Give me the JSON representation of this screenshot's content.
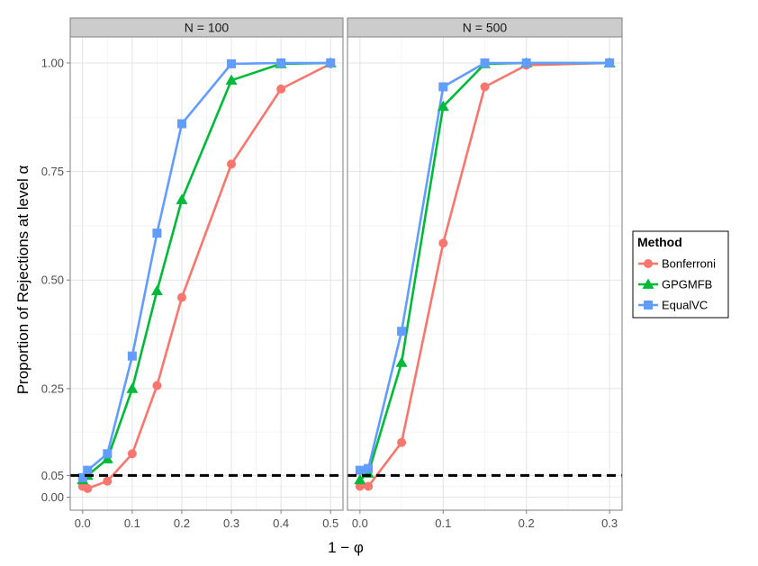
{
  "chart_data": {
    "type": "line",
    "ylabel": "Proportion of Rejections at level α",
    "xlabel": "1 − φ",
    "ylim": [
      -0.03,
      1.06
    ],
    "y_ticks": [
      0.0,
      0.05,
      0.25,
      0.5,
      0.75,
      1.0
    ],
    "y_tick_labels": [
      "0.00",
      "0.05",
      "0.25",
      "0.50",
      "0.75",
      "1.00"
    ],
    "reference_line": {
      "y": 0.05,
      "style": "dashed",
      "color": "#000000"
    },
    "grid": true,
    "legend": {
      "title": "Method",
      "placement": "right",
      "entries": [
        {
          "name": "Bonferroni",
          "color": "#F8766D",
          "marker": "circle"
        },
        {
          "name": "GPGMFB",
          "color": "#00BA38",
          "marker": "triangle"
        },
        {
          "name": "EqualVC",
          "color": "#619CFF",
          "marker": "square"
        }
      ]
    },
    "panels": [
      {
        "label": "N = 100",
        "xlim": [
          -0.025,
          0.525
        ],
        "x_ticks": [
          0.0,
          0.1,
          0.2,
          0.3,
          0.4,
          0.5
        ],
        "x_tick_labels": [
          "0.0",
          "0.1",
          "0.2",
          "0.3",
          "0.4",
          "0.5"
        ],
        "x": [
          0.0,
          0.01,
          0.05,
          0.1,
          0.15,
          0.2,
          0.3,
          0.4,
          0.5
        ],
        "series": [
          {
            "name": "Bonferroni",
            "values": [
              0.025,
              0.02,
              0.037,
              0.1,
              0.257,
              0.46,
              0.767,
              0.94,
              0.998
            ]
          },
          {
            "name": "GPGMFB",
            "values": [
              0.04,
              0.05,
              0.088,
              0.25,
              0.475,
              0.685,
              0.96,
              0.998,
              1.0
            ]
          },
          {
            "name": "EqualVC",
            "values": [
              0.045,
              0.062,
              0.1,
              0.325,
              0.608,
              0.86,
              0.998,
              1.0,
              1.0
            ]
          }
        ]
      },
      {
        "label": "N = 500",
        "xlim": [
          -0.015,
          0.315
        ],
        "x_ticks": [
          0.0,
          0.1,
          0.2,
          0.3
        ],
        "x_tick_labels": [
          "0.0",
          "0.1",
          "0.2",
          "0.3"
        ],
        "x": [
          0.0,
          0.01,
          0.05,
          0.1,
          0.15,
          0.2,
          0.3
        ],
        "series": [
          {
            "name": "Bonferroni",
            "values": [
              0.025,
              0.025,
              0.126,
              0.585,
              0.945,
              0.995,
              1.0
            ]
          },
          {
            "name": "GPGMFB",
            "values": [
              0.04,
              0.055,
              0.31,
              0.9,
              0.998,
              1.0,
              1.0
            ]
          },
          {
            "name": "EqualVC",
            "values": [
              0.062,
              0.066,
              0.382,
              0.945,
              1.0,
              1.0,
              1.0
            ]
          }
        ]
      }
    ]
  }
}
